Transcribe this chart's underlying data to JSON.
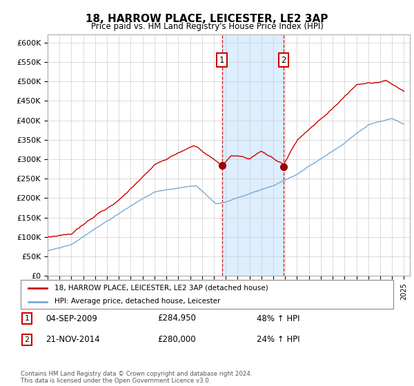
{
  "title": "18, HARROW PLACE, LEICESTER, LE2 3AP",
  "subtitle": "Price paid vs. HM Land Registry's House Price Index (HPI)",
  "ylim": [
    0,
    620000
  ],
  "yticks": [
    0,
    50000,
    100000,
    150000,
    200000,
    250000,
    300000,
    350000,
    400000,
    450000,
    500000,
    550000,
    600000
  ],
  "ytick_labels": [
    "£0",
    "£50K",
    "£100K",
    "£150K",
    "£200K",
    "£250K",
    "£300K",
    "£350K",
    "£400K",
    "£450K",
    "£500K",
    "£550K",
    "£600K"
  ],
  "sale1_date": "04-SEP-2009",
  "sale1_price": 284950,
  "sale1_price_str": "£284,950",
  "sale1_hpi_pct": "48% ↑ HPI",
  "sale2_date": "21-NOV-2014",
  "sale2_price": 280000,
  "sale2_price_str": "£280,000",
  "sale2_hpi_pct": "24% ↑ HPI",
  "sale1_year": 2009.67,
  "sale2_year": 2014.88,
  "hpi_line_color": "#7aa8d2",
  "price_line_color": "#cc0000",
  "sale_dot_color": "#990000",
  "highlight_color": "#ddeeff",
  "annotation_box_color": "#cc0000",
  "legend_line1": "18, HARROW PLACE, LEICESTER, LE2 3AP (detached house)",
  "legend_line2": "HPI: Average price, detached house, Leicester",
  "footer": "Contains HM Land Registry data © Crown copyright and database right 2024.\nThis data is licensed under the Open Government Licence v3.0.",
  "background_color": "#ffffff",
  "grid_color": "#cccccc"
}
